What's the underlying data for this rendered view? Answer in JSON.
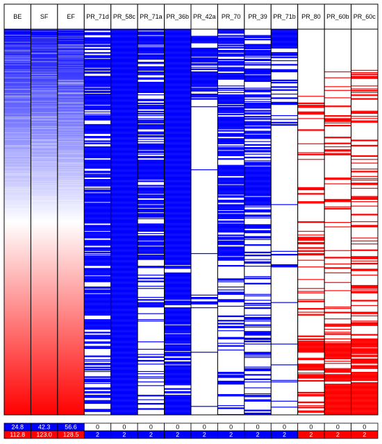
{
  "chart_data": {
    "type": "heatmap",
    "columns": [
      {
        "label": "BE",
        "kind": "gradient",
        "legend_min": "24.8",
        "legend_max": "112.8"
      },
      {
        "label": "SF",
        "kind": "gradient",
        "legend_min": "42.3",
        "legend_max": "123.0"
      },
      {
        "label": "EF",
        "kind": "gradient",
        "legend_min": "56.6",
        "legend_max": "128.5"
      },
      {
        "label": "PR_71d",
        "kind": "binary",
        "color": "#0000ff",
        "legend_min": "0",
        "legend_max": "2",
        "bands": [
          [
            0.0,
            0.45,
            0.55
          ],
          [
            0.45,
            0.8,
            0.7
          ],
          [
            0.8,
            1.0,
            0.3
          ]
        ]
      },
      {
        "label": "PR_58c",
        "kind": "binary",
        "color": "#0000ff",
        "legend_min": "0",
        "legend_max": "2",
        "bands": [
          [
            0.0,
            0.05,
            1.0
          ],
          [
            0.05,
            0.45,
            0.8
          ],
          [
            0.45,
            1.0,
            0.75
          ]
        ]
      },
      {
        "label": "PR_71a",
        "kind": "binary",
        "color": "#0000ff",
        "legend_min": "0",
        "legend_max": "2",
        "bands": [
          [
            0.0,
            0.3,
            0.5
          ],
          [
            0.3,
            0.6,
            0.6
          ],
          [
            0.6,
            1.0,
            0.25
          ]
        ]
      },
      {
        "label": "PR_36b",
        "kind": "binary",
        "color": "#0000ff",
        "legend_min": "0",
        "legend_max": "2",
        "bands": [
          [
            0.0,
            0.12,
            1.0
          ],
          [
            0.12,
            0.6,
            0.8
          ],
          [
            0.6,
            1.0,
            0.7
          ]
        ]
      },
      {
        "label": "PR_42a",
        "kind": "binary",
        "color": "#0000ff",
        "legend_min": "0",
        "legend_max": "2",
        "bands": [
          [
            0.0,
            0.18,
            0.6
          ],
          [
            0.18,
            1.0,
            0.02
          ]
        ]
      },
      {
        "label": "PR_70",
        "kind": "binary",
        "color": "#0000ff",
        "legend_min": "0",
        "legend_max": "2",
        "bands": [
          [
            0.0,
            0.6,
            0.55
          ],
          [
            0.6,
            1.0,
            0.2
          ]
        ]
      },
      {
        "label": "PR_39",
        "kind": "binary",
        "color": "#0000ff",
        "legend_min": "0",
        "legend_max": "2",
        "bands": [
          [
            0.0,
            0.55,
            0.5
          ],
          [
            0.55,
            1.0,
            0.22
          ]
        ]
      },
      {
        "label": "PR_71b",
        "kind": "binary",
        "color": "#0000ff",
        "legend_min": "0",
        "legend_max": "2",
        "bands": [
          [
            0.0,
            0.05,
            0.75
          ],
          [
            0.05,
            0.2,
            0.4
          ],
          [
            0.2,
            1.0,
            0.03
          ]
        ]
      },
      {
        "label": "PR_80",
        "kind": "binary",
        "color": "#ff0000",
        "legend_min": "0",
        "legend_max": "2",
        "bands": [
          [
            0.0,
            0.14,
            0.0
          ],
          [
            0.14,
            0.8,
            0.15
          ],
          [
            0.8,
            1.0,
            0.45
          ]
        ]
      },
      {
        "label": "PR_60b",
        "kind": "binary",
        "color": "#ff0000",
        "legend_min": "0",
        "legend_max": "2",
        "bands": [
          [
            0.0,
            0.09,
            0.0
          ],
          [
            0.09,
            0.8,
            0.2
          ],
          [
            0.8,
            0.92,
            0.55
          ],
          [
            0.92,
            1.0,
            0.85
          ]
        ]
      },
      {
        "label": "PR_60c",
        "kind": "binary",
        "color": "#ff0000",
        "legend_min": "0",
        "legend_max": "2",
        "bands": [
          [
            0.0,
            0.09,
            0.0
          ],
          [
            0.09,
            0.8,
            0.22
          ],
          [
            0.8,
            0.92,
            0.55
          ],
          [
            0.92,
            1.0,
            0.85
          ]
        ]
      }
    ],
    "gradient_colors": {
      "low": "#0000ff",
      "mid": "#ffffff",
      "high": "#ff0000"
    },
    "n_rows": 520,
    "grid": false,
    "legend": "bottom"
  }
}
